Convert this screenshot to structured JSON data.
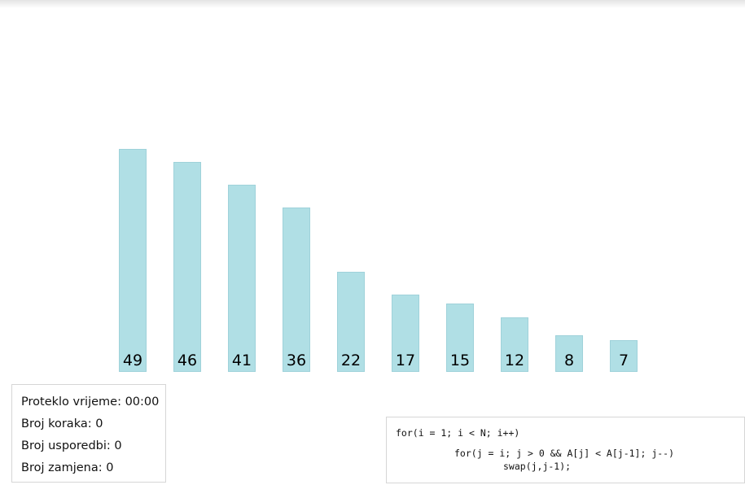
{
  "chart_data": {
    "type": "bar",
    "values": [
      49,
      46,
      41,
      36,
      22,
      17,
      15,
      12,
      8,
      7
    ],
    "categories": [
      "49",
      "46",
      "41",
      "36",
      "22",
      "17",
      "15",
      "12",
      "8",
      "7"
    ],
    "title": "",
    "xlabel": "",
    "ylabel": "",
    "bar_color": "#b0dfe5"
  },
  "stats": {
    "elapsed": "Proteklo vrijeme: 00:00",
    "steps": "Broj koraka: 0",
    "comparisons": "Broj usporedbi: 0",
    "swaps": "Broj zamjena: 0"
  },
  "code": {
    "line1": "for(i = 1; i < N; i++)",
    "line2": "for(j = i; j > 0 && A[j] < A[j-1]; j--)",
    "line3": "swap(j,j-1);"
  }
}
